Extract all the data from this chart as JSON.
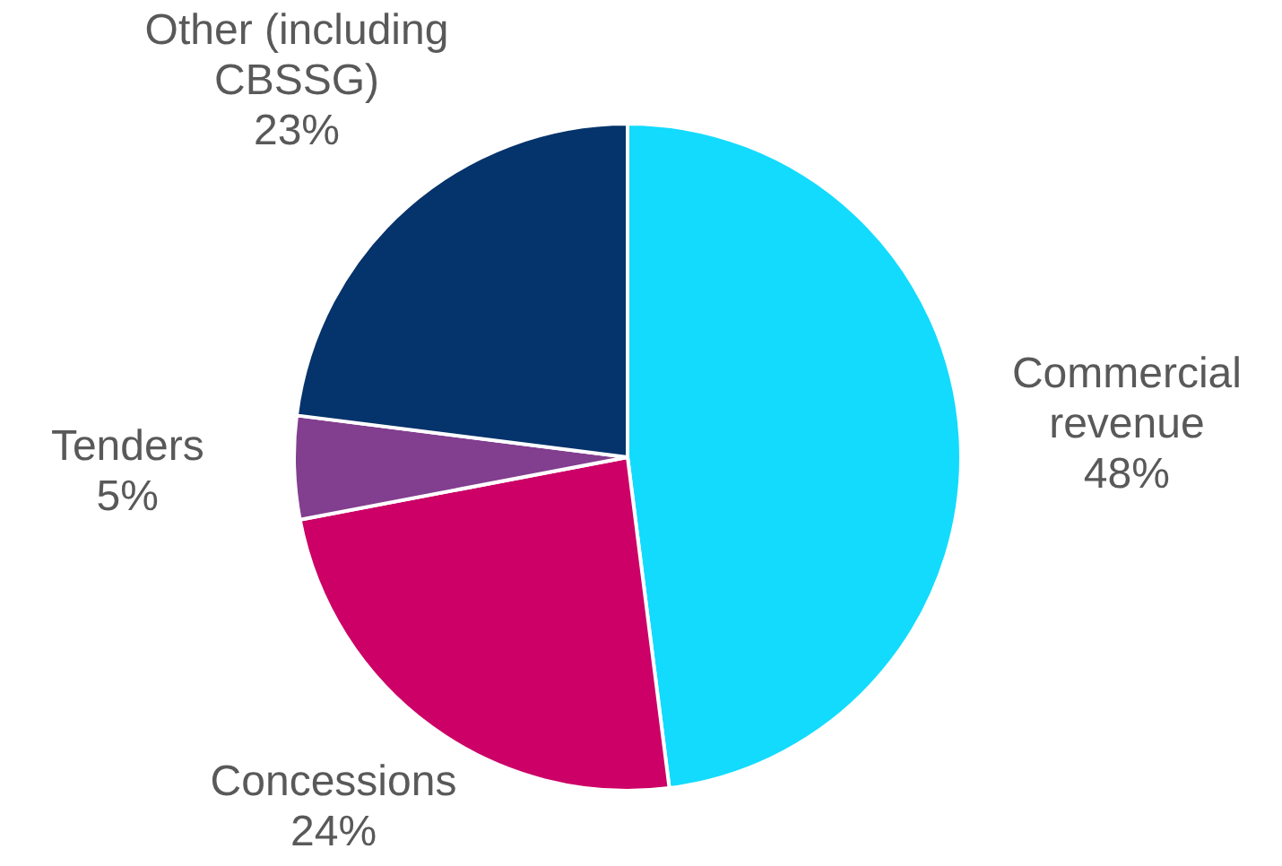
{
  "chart_data": {
    "type": "pie",
    "categories": [
      "Commercial revenue",
      "Concessions",
      "Tenders",
      "Other (including CBSSG)"
    ],
    "values": [
      48,
      24,
      5,
      23
    ],
    "value_labels": [
      "48%",
      "24%",
      "5%",
      "23%"
    ],
    "colors": [
      "#13dbfd",
      "#cc0066",
      "#823e8f",
      "#05336b"
    ],
    "legend": false
  }
}
